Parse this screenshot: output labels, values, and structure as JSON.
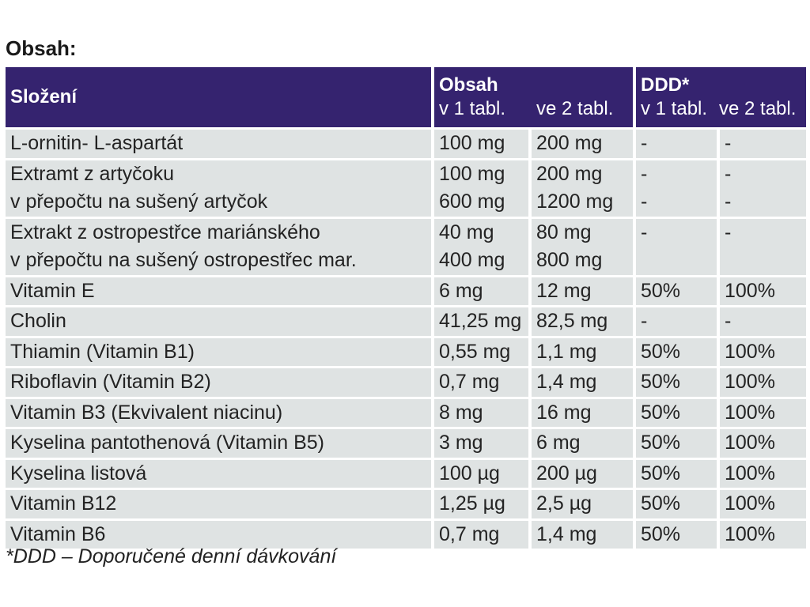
{
  "title": "Obsah:",
  "header": {
    "col1": "Složení",
    "obsah_title": "Obsah",
    "obsah_sub1": "v 1 tabl.",
    "obsah_sub2": "ve 2 tabl.",
    "ddd_title": "DDD*",
    "ddd_sub1": "v 1 tabl.",
    "ddd_sub2": "ve 2 tabl."
  },
  "rows": [
    {
      "name": [
        "L-ornitin- L-aspartát"
      ],
      "v1": [
        "100 mg"
      ],
      "v2": [
        "200 mg"
      ],
      "d1": [
        "-"
      ],
      "d2": [
        "-"
      ]
    },
    {
      "name": [
        "Extramt z artyčoku",
        "v přepočtu na sušený artyčok"
      ],
      "v1": [
        "100 mg",
        "600 mg"
      ],
      "v2": [
        "200 mg",
        "1200 mg"
      ],
      "d1": [
        "-",
        "-"
      ],
      "d2": [
        "-",
        "-"
      ]
    },
    {
      "name": [
        "Extrakt z ostropestřce mariánského",
        "v přepočtu na sušený ostropestřec mar."
      ],
      "v1": [
        "40 mg",
        "400 mg"
      ],
      "v2": [
        "80 mg",
        "800 mg"
      ],
      "d1": [
        "-"
      ],
      "d2": [
        "-"
      ]
    },
    {
      "name": [
        "Vitamin E"
      ],
      "v1": [
        "6 mg"
      ],
      "v2": [
        "12 mg"
      ],
      "d1": [
        "50%"
      ],
      "d2": [
        "100%"
      ]
    },
    {
      "name": [
        "Cholin"
      ],
      "v1": [
        "41,25 mg"
      ],
      "v2": [
        "82,5 mg"
      ],
      "d1": [
        "-"
      ],
      "d2": [
        "-"
      ]
    },
    {
      "name": [
        "Thiamin (Vitamin B1)"
      ],
      "v1": [
        "0,55 mg"
      ],
      "v2": [
        "1,1 mg"
      ],
      "d1": [
        "50%"
      ],
      "d2": [
        "100%"
      ]
    },
    {
      "name": [
        "Riboflavin (Vitamin B2)"
      ],
      "v1": [
        "0,7 mg"
      ],
      "v2": [
        "1,4 mg"
      ],
      "d1": [
        "50%"
      ],
      "d2": [
        "100%"
      ]
    },
    {
      "name": [
        "Vitamin B3 (Ekvivalent niacinu)"
      ],
      "v1": [
        "8 mg"
      ],
      "v2": [
        "16 mg"
      ],
      "d1": [
        "50%"
      ],
      "d2": [
        "100%"
      ]
    },
    {
      "name": [
        "Kyselina pantothenová (Vitamin B5)"
      ],
      "v1": [
        "3 mg"
      ],
      "v2": [
        "6 mg"
      ],
      "d1": [
        "50%"
      ],
      "d2": [
        "100%"
      ]
    },
    {
      "name": [
        "Kyselina listová"
      ],
      "v1": [
        "100 µg"
      ],
      "v2": [
        "200 µg"
      ],
      "d1": [
        "50%"
      ],
      "d2": [
        "100%"
      ]
    },
    {
      "name": [
        "Vitamin B12"
      ],
      "v1": [
        "1,25 µg"
      ],
      "v2": [
        "2,5 µg"
      ],
      "d1": [
        "50%"
      ],
      "d2": [
        "100%"
      ]
    },
    {
      "name": [
        "Vitamin B6"
      ],
      "v1": [
        "0,7 mg"
      ],
      "v2": [
        "1,4 mg"
      ],
      "d1": [
        "50%"
      ],
      "d2": [
        "100%"
      ]
    }
  ],
  "footnote": "*DDD – Doporučené denní dávkování"
}
